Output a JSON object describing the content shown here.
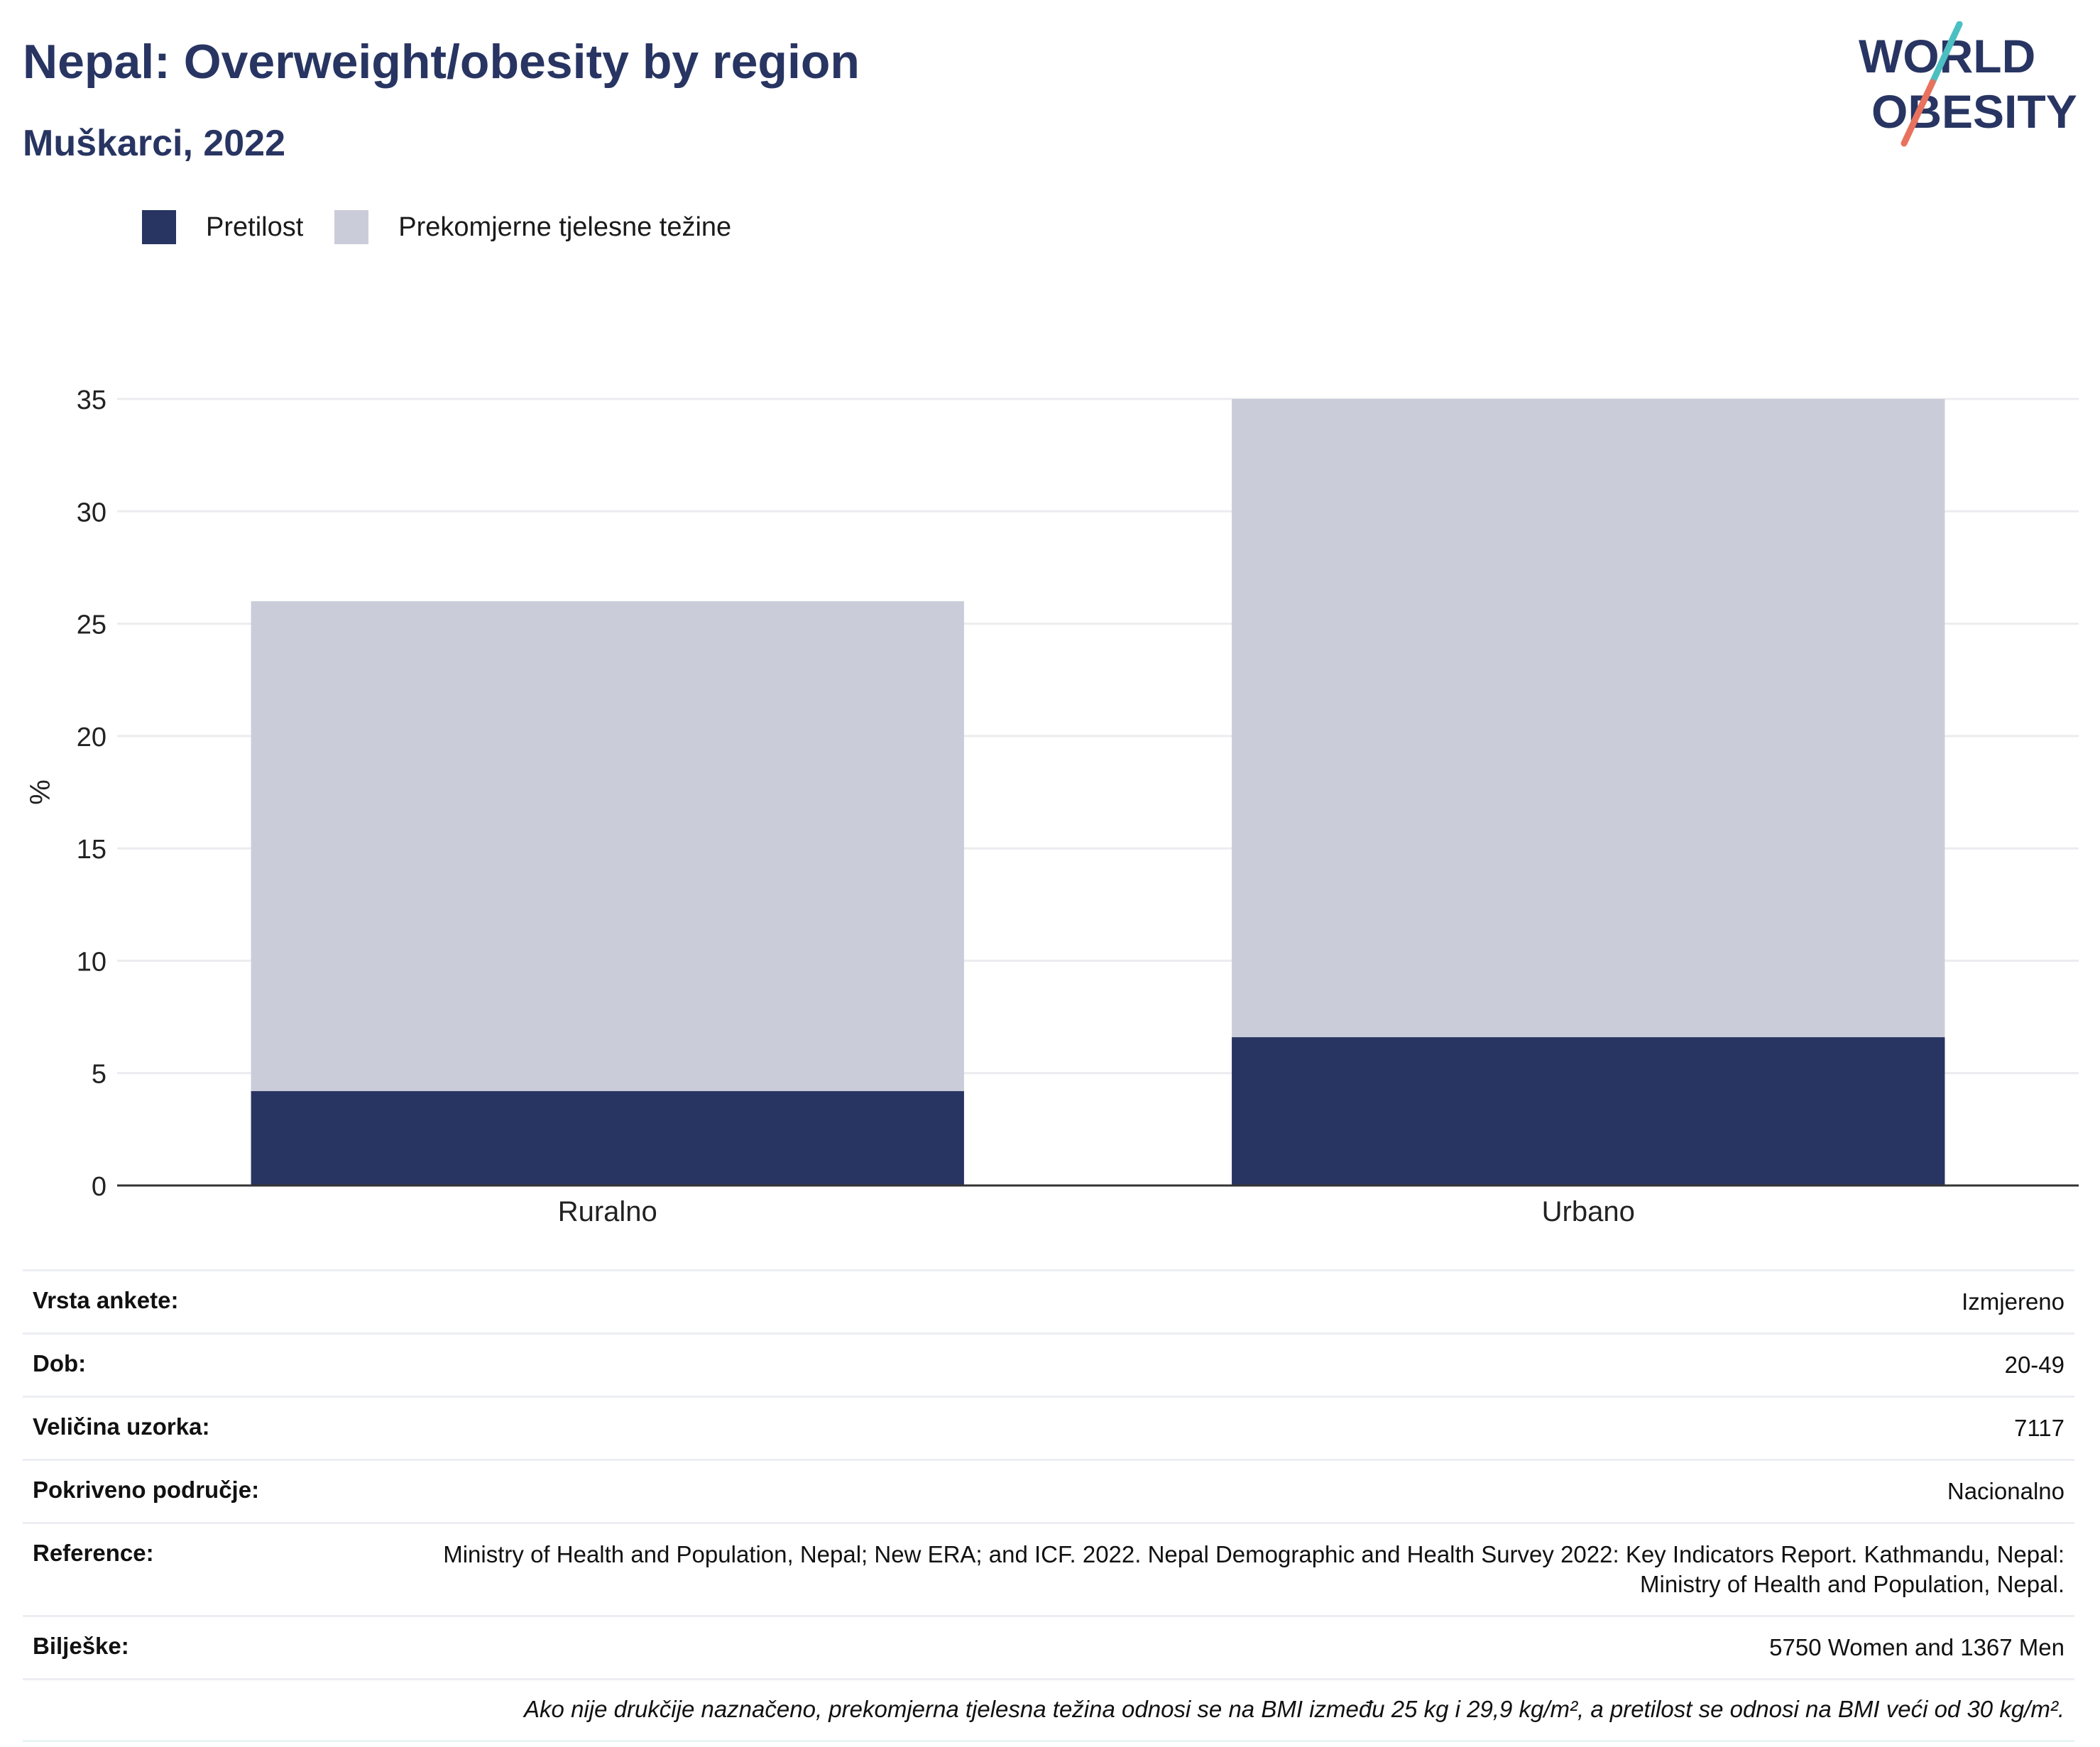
{
  "header": {
    "title": "Nepal: Overweight/obesity by region",
    "subtitle": "Muškarci, 2022"
  },
  "logo": {
    "line1": "WORLD",
    "line2": "OBESITY",
    "colors": {
      "text": "#283562",
      "slash_top": "#4bbfc1",
      "slash_bottom": "#e8725e"
    }
  },
  "colors": {
    "obesity": "#283562",
    "overweight": "#cacdd9",
    "grid": "#ececf0",
    "axis": "#333333"
  },
  "chart_data": {
    "type": "bar",
    "stacked": true,
    "categories": [
      "Ruralno",
      "Urbano"
    ],
    "series": [
      {
        "name": "Pretilost",
        "values": [
          4.2,
          6.6
        ],
        "color": "#283562"
      },
      {
        "name": "Prekomjerne tjelesne težine",
        "values": [
          21.8,
          28.4
        ],
        "color": "#cacdd9"
      }
    ],
    "ylabel": "%",
    "ylim": [
      0,
      35
    ],
    "yticks": [
      "0",
      "5",
      "10",
      "15",
      "20",
      "25",
      "30",
      "35"
    ],
    "grid": true,
    "legend_position": "top-left"
  },
  "info": {
    "rows": [
      {
        "key": "Vrsta ankete:",
        "value": "Izmjereno"
      },
      {
        "key": "Dob:",
        "value": "20-49"
      },
      {
        "key": "Veličina uzorka:",
        "value": "7117"
      },
      {
        "key": "Pokriveno područje:",
        "value": "Nacionalno"
      },
      {
        "key": "Reference:",
        "value": "Ministry of Health and Population, Nepal; New ERA; and ICF. 2022. Nepal Demographic and Health Survey 2022: Key Indicators Report. Kathmandu, Nepal: Ministry of Health and Population, Nepal."
      },
      {
        "key": "Bilješke:",
        "value": "5750 Women and 1367 Men"
      }
    ],
    "footnote": "Ako nije drukčije naznačeno, prekomjerna tjelesna težina odnosi se na BMI između 25 kg i 29,9 kg/m², a pretilost se odnosi na BMI veći od 30 kg/m²."
  }
}
